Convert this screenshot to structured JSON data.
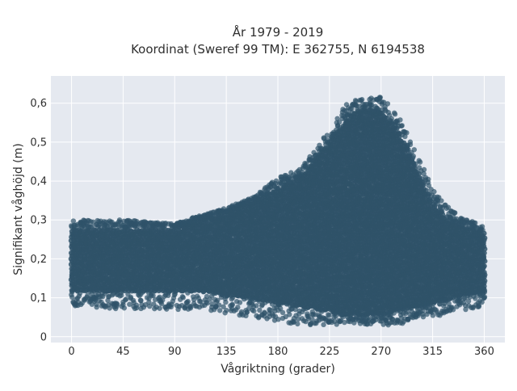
{
  "chart_data": {
    "type": "scatter",
    "title_lines": [
      "År 1979 - 2019",
      "Koordinat (Sweref 99 TM): E 362755, N 6194538"
    ],
    "xlabel": "Vågriktning (grader)",
    "ylabel": "Signifikant våghöjd (m)",
    "xlim": [
      -18,
      378
    ],
    "ylim": [
      -0.015,
      0.67
    ],
    "x_ticks": [
      0,
      45,
      90,
      135,
      180,
      225,
      270,
      315,
      360
    ],
    "x_tick_labels": [
      "0",
      "45",
      "90",
      "135",
      "180",
      "225",
      "270",
      "315",
      "360"
    ],
    "y_ticks": [
      0,
      0.1,
      0.2,
      0.3,
      0.4,
      0.5,
      0.6
    ],
    "y_tick_labels": [
      "0",
      "0,1",
      "0,2",
      "0,3",
      "0,4",
      "0,5",
      "0,6"
    ],
    "grid": true,
    "legend": "none",
    "marker_color": "#2f5269",
    "plot_background": "#e5e9f0",
    "envelope": {
      "x": [
        0,
        45,
        90,
        110,
        135,
        160,
        180,
        200,
        225,
        240,
        255,
        270,
        285,
        300,
        315,
        330,
        345,
        360
      ],
      "upper": [
        0.3,
        0.3,
        0.29,
        0.31,
        0.33,
        0.36,
        0.41,
        0.43,
        0.53,
        0.6,
        0.62,
        0.62,
        0.57,
        0.48,
        0.38,
        0.33,
        0.3,
        0.29
      ],
      "lower": [
        0.08,
        0.07,
        0.07,
        0.07,
        0.06,
        0.05,
        0.04,
        0.03,
        0.03,
        0.03,
        0.03,
        0.03,
        0.03,
        0.05,
        0.05,
        0.06,
        0.07,
        0.08
      ],
      "dense_upper": [
        0.28,
        0.28,
        0.28,
        0.3,
        0.32,
        0.35,
        0.38,
        0.41,
        0.5,
        0.56,
        0.59,
        0.58,
        0.53,
        0.44,
        0.34,
        0.3,
        0.28,
        0.27
      ],
      "dense_lower": [
        0.12,
        0.12,
        0.12,
        0.12,
        0.11,
        0.1,
        0.09,
        0.08,
        0.07,
        0.06,
        0.06,
        0.06,
        0.07,
        0.08,
        0.09,
        0.1,
        0.11,
        0.12
      ]
    }
  }
}
